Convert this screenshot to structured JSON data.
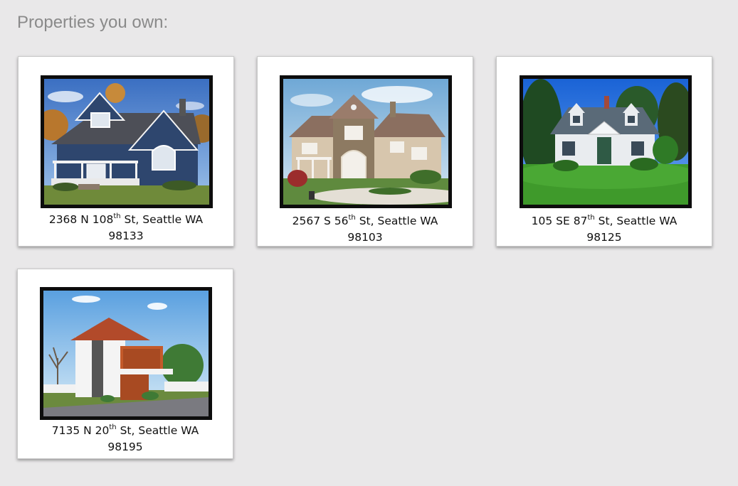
{
  "page": {
    "title": "Properties you own:"
  },
  "properties": [
    {
      "number": "2368 N 108",
      "ordinal": "th",
      "street": " St, Seattle WA",
      "zip": "98133",
      "house_icon": "blue-victorian-house-photo"
    },
    {
      "number": "2567 S 56",
      "ordinal": "th",
      "street": " St, Seattle WA",
      "zip": "98103",
      "house_icon": "stone-mansion-photo"
    },
    {
      "number": "105 SE 87",
      "ordinal": "th",
      "street": " St, Seattle WA",
      "zip": "98125",
      "house_icon": "white-cape-cod-house-photo"
    },
    {
      "number": "7135 N 20",
      "ordinal": "th",
      "street": " St, Seattle WA",
      "zip": "98195",
      "house_icon": "modern-house-photo"
    }
  ],
  "colors": {
    "background": "#e9e8e9",
    "title": "#8a8a8a",
    "card": "#ffffff",
    "frame": "#0d0d0d"
  }
}
